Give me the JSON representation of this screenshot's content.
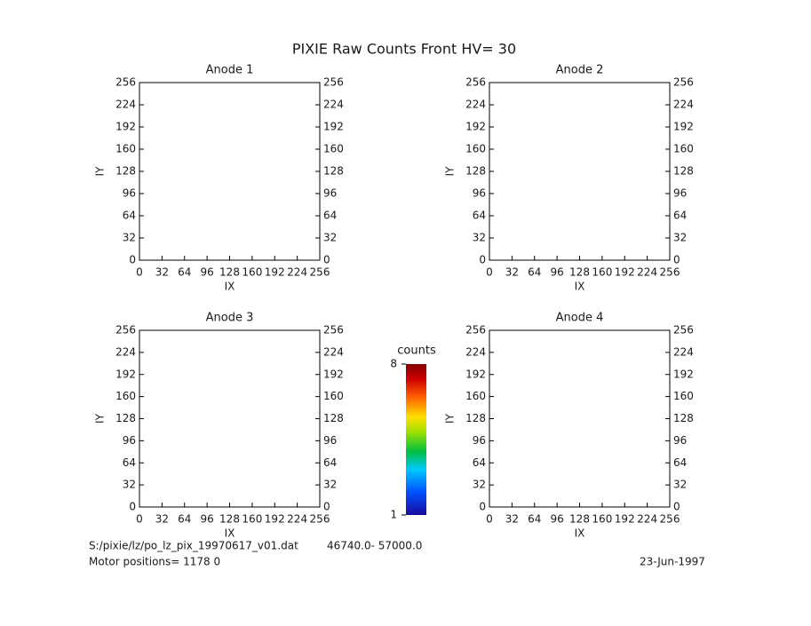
{
  "title": "PIXIE Raw Counts Front HV= 30",
  "chart_data": [
    {
      "type": "heatmap",
      "title": "Anode 1",
      "xlabel": "IX",
      "ylabel": "IY",
      "xlim": [
        0,
        256
      ],
      "ylim": [
        0,
        256
      ],
      "xticks": [
        0,
        32,
        64,
        96,
        128,
        160,
        192,
        224,
        256
      ],
      "yticks": [
        0,
        32,
        64,
        96,
        128,
        160,
        192,
        224,
        256
      ]
    },
    {
      "type": "heatmap",
      "title": "Anode 2",
      "xlabel": "IX",
      "ylabel": "IY",
      "xlim": [
        0,
        256
      ],
      "ylim": [
        0,
        256
      ],
      "xticks": [
        0,
        32,
        64,
        96,
        128,
        160,
        192,
        224,
        256
      ],
      "yticks": [
        0,
        32,
        64,
        96,
        128,
        160,
        192,
        224,
        256
      ]
    },
    {
      "type": "heatmap",
      "title": "Anode 3",
      "xlabel": "IX",
      "ylabel": "IY",
      "xlim": [
        0,
        256
      ],
      "ylim": [
        0,
        256
      ],
      "xticks": [
        0,
        32,
        64,
        96,
        128,
        160,
        192,
        224,
        256
      ],
      "yticks": [
        0,
        32,
        64,
        96,
        128,
        160,
        192,
        224,
        256
      ]
    },
    {
      "type": "heatmap",
      "title": "Anode 4",
      "xlabel": "IX",
      "ylabel": "IY",
      "xlim": [
        0,
        256
      ],
      "ylim": [
        0,
        256
      ],
      "xticks": [
        0,
        32,
        64,
        96,
        128,
        160,
        192,
        224,
        256
      ],
      "yticks": [
        0,
        32,
        64,
        96,
        128,
        160,
        192,
        224,
        256
      ]
    }
  ],
  "colorbar": {
    "label": "counts",
    "lim": [
      1,
      8
    ],
    "ticks": [
      1,
      8
    ]
  },
  "footer": {
    "file": "S:/pixie/lz/po_lz_pix_19970617_v01.dat",
    "range": "46740.0- 57000.0",
    "motor": "Motor positions= 1178 0",
    "date": "23-Jun-1997"
  }
}
